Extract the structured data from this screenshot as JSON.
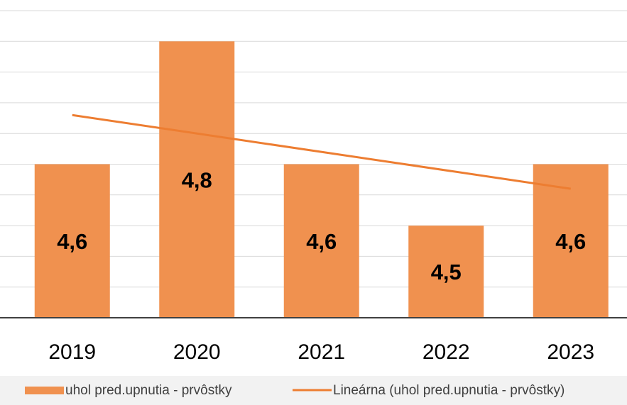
{
  "chart_data": {
    "type": "bar",
    "categories": [
      "2019",
      "2020",
      "2021",
      "2022",
      "2023"
    ],
    "series": [
      {
        "name": "uhol pred.upnutia - prvôstky",
        "color": "#f0914f",
        "values": [
          4.6,
          4.8,
          4.6,
          4.5,
          4.6
        ],
        "value_labels": [
          "4,6",
          "4,8",
          "4,6",
          "4,5",
          "4,6"
        ]
      }
    ],
    "trendline": {
      "name": "Lineárna (uhol pred.upnutia - prvôstky)",
      "type": "linear",
      "color": "#ed7d31"
    },
    "ylim": [
      4.35,
      4.85
    ],
    "yticks": [
      4.35,
      4.4,
      4.45,
      4.5,
      4.55,
      4.6,
      4.65,
      4.7,
      4.75,
      4.8,
      4.85
    ],
    "grid": true,
    "legend": "bottom"
  }
}
